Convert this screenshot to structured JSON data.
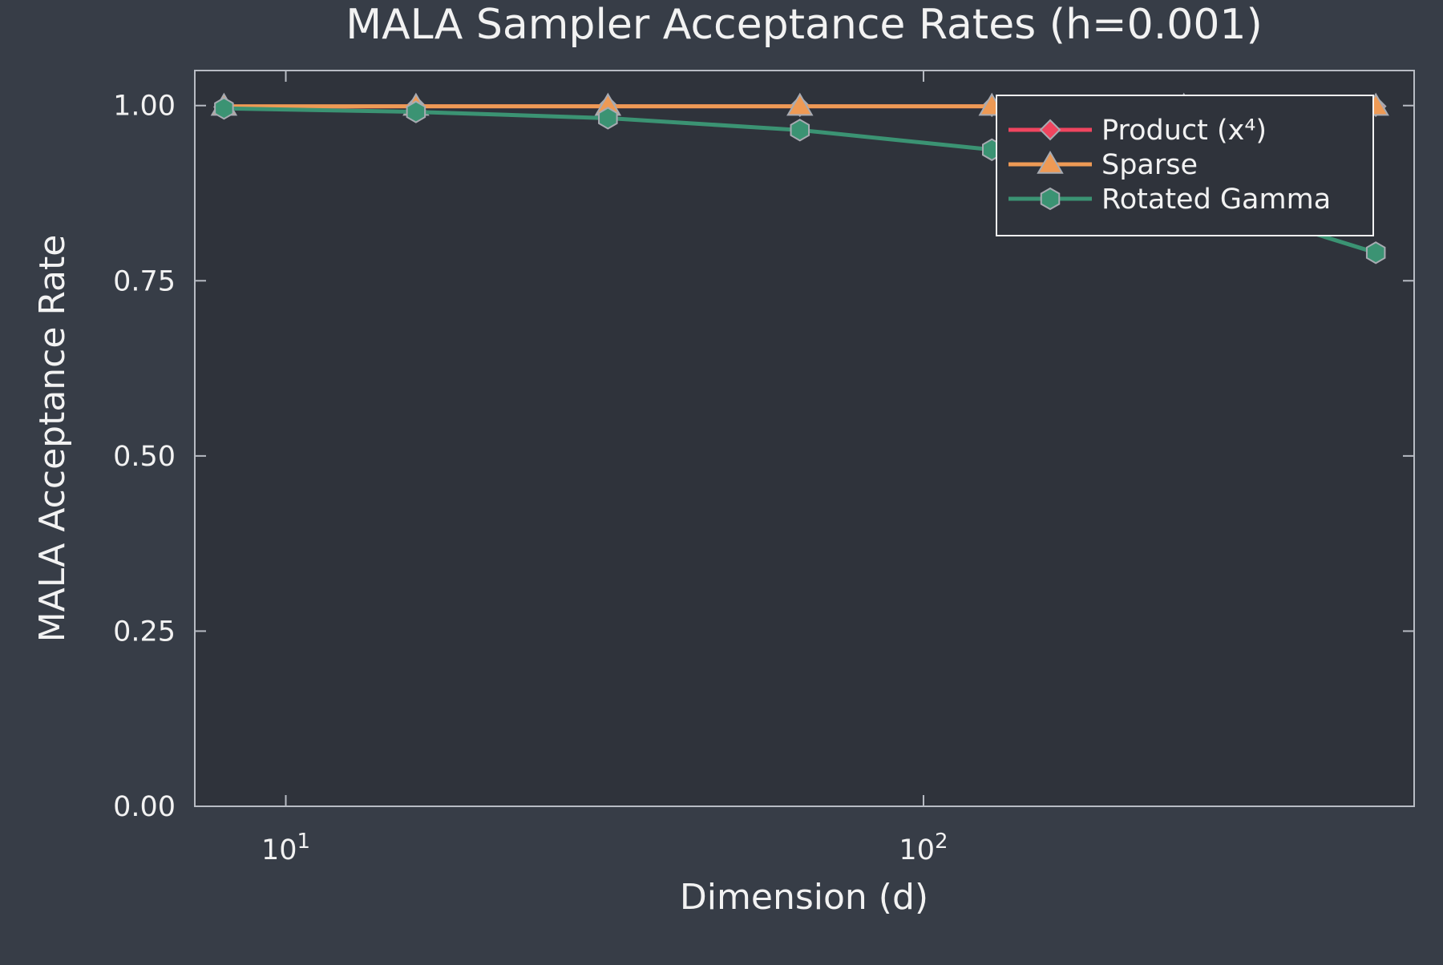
{
  "chart_data": {
    "type": "line",
    "title": "MALA Sampler Acceptance Rates (h=0.001)",
    "xlabel": "Dimension (d)",
    "ylabel": "MALA Acceptance Rate",
    "xscale": "log",
    "xlim": [
      7.2,
      588
    ],
    "ylim": [
      0,
      1.05
    ],
    "x_ticks": [
      {
        "value": 10,
        "base": "10",
        "exp": "1"
      },
      {
        "value": 100,
        "base": "10",
        "exp": "2"
      }
    ],
    "y_ticks": [
      {
        "value": 0.0,
        "label": "0.00"
      },
      {
        "value": 0.25,
        "label": "0.25"
      },
      {
        "value": 0.5,
        "label": "0.50"
      },
      {
        "value": 0.75,
        "label": "0.75"
      },
      {
        "value": 1.0,
        "label": "1.00"
      }
    ],
    "grid": false,
    "legend_position": "top-right",
    "x": [
      8,
      16,
      32,
      64,
      128,
      256,
      512
    ],
    "series": [
      {
        "name": "Product (x⁴)",
        "marker": "diamond",
        "color": "#f0455f",
        "values": [
          0.998,
          0.999,
          0.999,
          0.999,
          0.999,
          0.999,
          0.999
        ]
      },
      {
        "name": "Sparse",
        "marker": "triangle",
        "color": "#ee9a55",
        "values": [
          0.999,
          0.999,
          0.999,
          0.999,
          0.999,
          0.999,
          0.999
        ]
      },
      {
        "name": "Rotated Gamma",
        "marker": "hexagon",
        "color": "#3b9373",
        "values": [
          0.996,
          0.991,
          0.982,
          0.965,
          0.937,
          0.875,
          0.79
        ]
      }
    ]
  },
  "colors": {
    "background": "#373d47",
    "plot_area": "#2f333b",
    "axis": "#b8bcc4",
    "text": "#f2f2f2",
    "marker_edge": "#a8abb2"
  }
}
